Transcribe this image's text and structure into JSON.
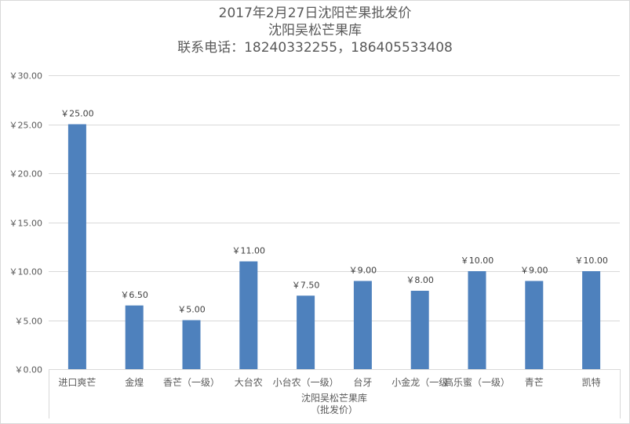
{
  "chart_data": {
    "type": "bar",
    "title_lines": [
      "2017年2月27日沈阳芒果批发价",
      "沈阳吴松芒果库",
      "联系电话：18240332255，186405533408"
    ],
    "categories": [
      "进口爽芒",
      "金煌",
      "香芒（一级）",
      "大台农",
      "小台农（一级）",
      "台牙",
      "小金龙（一级",
      "高乐蜜（一级）",
      "青芒",
      "凯特"
    ],
    "values": [
      25.0,
      6.5,
      5.0,
      11.0,
      7.5,
      9.0,
      8.0,
      10.0,
      9.0,
      10.0
    ],
    "data_labels": [
      "￥25.00",
      "￥6.50",
      "￥5.00",
      "￥11.00",
      "￥7.50",
      "￥9.00",
      "￥8.00",
      "￥10.00",
      "￥9.00",
      "￥10.00"
    ],
    "y_ticks": [
      0,
      5,
      10,
      15,
      20,
      25,
      30
    ],
    "y_tick_labels": [
      "￥0.00",
      "￥5.00",
      "￥10.00",
      "￥15.00",
      "￥20.00",
      "￥25.00",
      "￥30.00"
    ],
    "ylim": [
      0,
      30
    ],
    "group_label_lines": [
      "沈阳吴松芒果库",
      "（批发价）"
    ],
    "grid": true,
    "legend": "none",
    "bar_color": "#4e81bd",
    "grid_color": "#d9d9d9",
    "text_color": "#595959"
  }
}
